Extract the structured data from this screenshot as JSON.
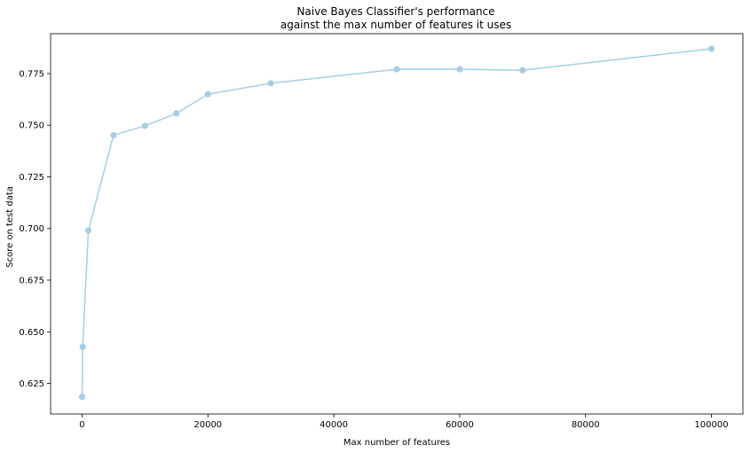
{
  "chart_data": {
    "type": "line",
    "title_line1": "Naive Bayes Classifier's performance",
    "title_line2": "against the max number of features it uses",
    "xlabel": "Max number of features",
    "ylabel": "Score on test data",
    "xlim": [
      -5000,
      105000
    ],
    "ylim": [
      0.6102,
      0.7943
    ],
    "xticks": [
      0,
      20000,
      40000,
      60000,
      80000,
      100000
    ],
    "xtick_labels": [
      "0",
      "20000",
      "40000",
      "60000",
      "80000",
      "100000"
    ],
    "yticks": [
      0.625,
      0.65,
      0.675,
      0.7,
      0.725,
      0.75,
      0.775
    ],
    "ytick_labels": [
      "0.625",
      "0.650",
      "0.675",
      "0.700",
      "0.725",
      "0.750",
      "0.775"
    ],
    "grid": false,
    "series": [
      {
        "color": "#a6cee3",
        "marker": "circle",
        "x": [
          10,
          100,
          1000,
          5000,
          10000,
          15000,
          20000,
          30000,
          50000,
          60000,
          70000,
          100000
        ],
        "y": [
          0.6185,
          0.6427,
          0.699,
          0.7452,
          0.7497,
          0.7557,
          0.765,
          0.7703,
          0.7771,
          0.7771,
          0.7766,
          0.787
        ]
      }
    ]
  }
}
